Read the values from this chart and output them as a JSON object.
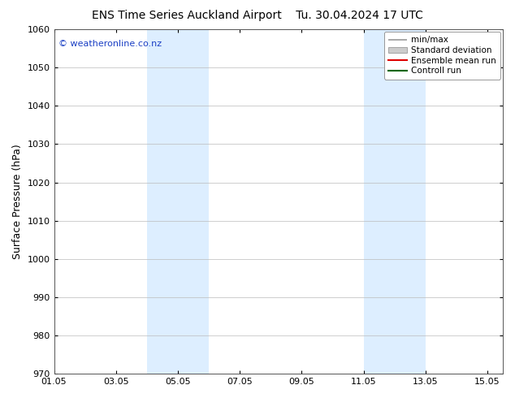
{
  "title_left": "ENS Time Series Auckland Airport",
  "title_right": "Tu. 30.04.2024 17 UTC",
  "ylabel": "Surface Pressure (hPa)",
  "ylim": [
    970,
    1060
  ],
  "yticks": [
    970,
    980,
    990,
    1000,
    1010,
    1020,
    1030,
    1040,
    1050,
    1060
  ],
  "xlim_start": 1.0,
  "xlim_end": 15.5,
  "xtick_labels": [
    "01.05",
    "03.05",
    "05.05",
    "07.05",
    "09.05",
    "11.05",
    "13.05",
    "15.05"
  ],
  "xtick_positions": [
    1.0,
    3.0,
    5.0,
    7.0,
    9.0,
    11.0,
    13.0,
    15.0
  ],
  "shaded_bands": [
    {
      "x_start": 4.0,
      "x_end": 6.0,
      "color": "#ddeeff"
    },
    {
      "x_start": 11.0,
      "x_end": 13.0,
      "color": "#ddeeff"
    }
  ],
  "watermark_text": "© weatheronline.co.nz",
  "watermark_color": "#1a3fc4",
  "bg_color": "#ffffff",
  "plot_bg_color": "#ffffff",
  "grid_color": "#bbbbbb",
  "title_fontsize": 10,
  "ylabel_fontsize": 9,
  "tick_fontsize": 8,
  "legend_fontsize": 7.5
}
